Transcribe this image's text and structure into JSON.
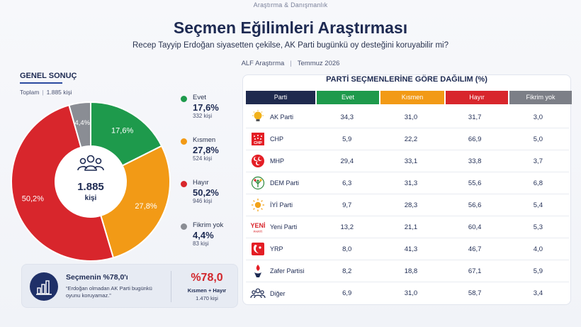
{
  "header": {
    "brand": "Araştırma & Danışmanlık",
    "title": "Seçmen Eğilimleri Araştırması",
    "subtitle": "Recep Tayyip Erdoğan siyasetten çekilse, AK Parti bugünkü oy desteğini koruyabilir mi?",
    "org": "ALF Araştırma",
    "date": "Temmuz 2026"
  },
  "summary": {
    "title": "GENEL SONUÇ",
    "total_label": "Toplam",
    "total_value": "1.885 kişi",
    "center_value": "1.885",
    "center_unit": "kişi"
  },
  "chart_data": [
    {
      "type": "pie",
      "title": "GENEL SONUÇ",
      "slices": [
        {
          "name": "Evet",
          "value": 17.6,
          "label": "17,6%",
          "count": "332 kişi",
          "pct": "17,6%",
          "color": "#1e9a4c"
        },
        {
          "name": "Kısmen",
          "value": 27.8,
          "label": "27,8%",
          "count": "524 kişi",
          "pct": "27,8%",
          "color": "#f29a16"
        },
        {
          "name": "Hayır",
          "value": 50.2,
          "label": "50,2%",
          "count": "946 kişi",
          "pct": "50,2%",
          "color": "#d8262c"
        },
        {
          "name": "Fikrim yok",
          "value": 4.4,
          "label": "4,4%",
          "count": "83 kişi",
          "pct": "4,4%",
          "color": "#8a8d94"
        }
      ]
    },
    {
      "type": "table",
      "title": "PARTİ SEÇMENLERİNE GÖRE DAĞILIM (%)",
      "columns": [
        "Parti",
        "Evet",
        "Kısmen",
        "Hayır",
        "Fikrim yok"
      ],
      "rows": [
        {
          "party": "AK Parti",
          "logo": "akparti-bulb-icon",
          "evet": "34,3",
          "kismen": "31,0",
          "hayir": "31,7",
          "fikrim": "3,0"
        },
        {
          "party": "CHP",
          "logo": "chp-logo-icon",
          "evet": "5,9",
          "kismen": "22,2",
          "hayir": "66,9",
          "fikrim": "5,0"
        },
        {
          "party": "MHP",
          "logo": "mhp-crescents-icon",
          "evet": "29,4",
          "kismen": "33,1",
          "hayir": "33,8",
          "fikrim": "3,7"
        },
        {
          "party": "DEM Parti",
          "logo": "dem-tree-icon",
          "evet": "6,3",
          "kismen": "31,3",
          "hayir": "55,6",
          "fikrim": "6,8"
        },
        {
          "party": "İYİ Parti",
          "logo": "iyi-sun-icon",
          "evet": "9,7",
          "kismen": "28,3",
          "hayir": "56,6",
          "fikrim": "5,4"
        },
        {
          "party": "Yeni Parti",
          "logo": "yeni-parti-logo-icon",
          "logo_text": "YENİ",
          "logo_sub": "PARTİ",
          "evet": "13,2",
          "kismen": "21,1",
          "hayir": "60,4",
          "fikrim": "5,3"
        },
        {
          "party": "YRP",
          "logo": "yrp-logo-icon",
          "evet": "8,0",
          "kismen": "41,3",
          "hayir": "46,7",
          "fikrim": "4,0"
        },
        {
          "party": "Zafer Partisi",
          "logo": "zafer-torch-icon",
          "evet": "8,2",
          "kismen": "18,8",
          "hayir": "67,1",
          "fikrim": "5,9"
        },
        {
          "party": "Diğer",
          "logo": "people-group-icon",
          "evet": "6,9",
          "kismen": "31,0",
          "hayir": "58,7",
          "fikrim": "3,4"
        }
      ]
    }
  ],
  "callout": {
    "title": "Seçmenin %78,0'ı",
    "quote": "“Erdoğan olmadan AK Parti bugünkü oyunu koruyamaz.”",
    "big": "%78,0",
    "sub": "Kısmen + Hayır",
    "count": "1.470 kişi"
  },
  "colors": {
    "evet": "#1e9a4c",
    "kismen": "#f29a16",
    "hayir": "#d8262c",
    "fikrim": "#7c7f87",
    "navy": "#1f2a4e"
  }
}
